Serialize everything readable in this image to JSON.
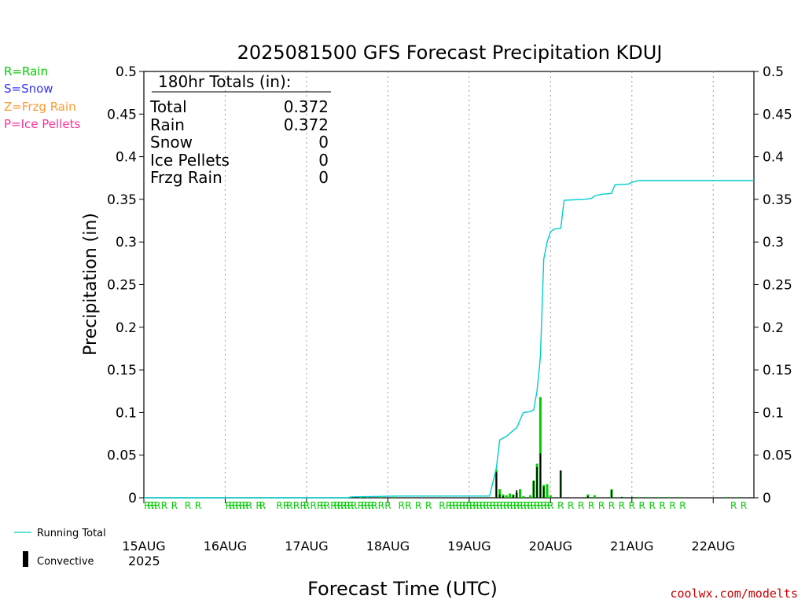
{
  "chart_data": {
    "type": "bar",
    "title": "2025081500 GFS Forecast Precipitation KDUJ",
    "xlabel": "Forecast Time (UTC)",
    "ylabel": "Precipitation (in)",
    "ylim": [
      0,
      0.5
    ],
    "y_ticks": [
      "0",
      "0.05",
      "0.1",
      "0.15",
      "0.2",
      "0.25",
      "0.3",
      "0.35",
      "0.4",
      "0.45",
      "0.5"
    ],
    "x_ticks": [
      "15AUG",
      "16AUG",
      "17AUG",
      "18AUG",
      "19AUG",
      "20AUG",
      "21AUG",
      "22AUG"
    ],
    "x_year": "2025",
    "xlim_hours": [
      0,
      180
    ],
    "grid": "vertical dotted at day boundaries",
    "colors": {
      "rain": "#00cc00",
      "snow": "#3333ff",
      "frzg": "#ff9933",
      "ice": "#ff3399",
      "convective": "#000000",
      "running_total": "#00cccc",
      "credit": "#cc0000"
    },
    "type_legend": [
      "R=Rain",
      "S=Snow",
      "Z=Frzg Rain",
      "P=Ice Pellets"
    ],
    "legend_bottom": [
      "Running Total",
      "Convective"
    ],
    "totals": {
      "header": "180hr Totals (in):",
      "rows": [
        {
          "label": "Total",
          "value": "0.372"
        },
        {
          "label": "Rain",
          "value": "0.372"
        },
        {
          "label": "Snow",
          "value": "0"
        },
        {
          "label": "Ice Pellets",
          "value": "0"
        },
        {
          "label": "Frzg Rain",
          "value": "0"
        }
      ]
    },
    "series": [
      {
        "name": "Running Total",
        "kind": "line",
        "points": [
          [
            0,
            0
          ],
          [
            60,
            0
          ],
          [
            61,
            0.001
          ],
          [
            75,
            0.002
          ],
          [
            102,
            0.002
          ],
          [
            104,
            0.035
          ],
          [
            105,
            0.068
          ],
          [
            107,
            0.072
          ],
          [
            109,
            0.079
          ],
          [
            110,
            0.082
          ],
          [
            112,
            0.1
          ],
          [
            114,
            0.101
          ],
          [
            115,
            0.103
          ],
          [
            116,
            0.125
          ],
          [
            117,
            0.165
          ],
          [
            118,
            0.28
          ],
          [
            119,
            0.3
          ],
          [
            120,
            0.312
          ],
          [
            121,
            0.315
          ],
          [
            123,
            0.316
          ],
          [
            124,
            0.349
          ],
          [
            130,
            0.35
          ],
          [
            132,
            0.351
          ],
          [
            133,
            0.354
          ],
          [
            135,
            0.356
          ],
          [
            138,
            0.357
          ],
          [
            139,
            0.367
          ],
          [
            143,
            0.368
          ],
          [
            144,
            0.37
          ],
          [
            146,
            0.372
          ],
          [
            180,
            0.372
          ]
        ]
      },
      {
        "name": "Rain",
        "kind": "bar",
        "points": [
          [
            61,
            0.001
          ],
          [
            64,
            0.001
          ],
          [
            66,
            0.001
          ],
          [
            70,
            0.001
          ],
          [
            74,
            0.001
          ],
          [
            104,
            0.033
          ],
          [
            105,
            0.01
          ],
          [
            106,
            0.004
          ],
          [
            107,
            0.003
          ],
          [
            108,
            0.005
          ],
          [
            109,
            0.004
          ],
          [
            110,
            0.006
          ],
          [
            111,
            0.01
          ],
          [
            112,
            0.002
          ],
          [
            114,
            0.003
          ],
          [
            115,
            0.02
          ],
          [
            116,
            0.04
          ],
          [
            117,
            0.118
          ],
          [
            118,
            0.015
          ],
          [
            119,
            0.016
          ],
          [
            120,
            0.003
          ],
          [
            123,
            0.032
          ],
          [
            131,
            0.004
          ],
          [
            133,
            0.003
          ],
          [
            138,
            0.01
          ],
          [
            141,
            0.001
          ],
          [
            144,
            0.001
          ],
          [
            146,
            0.001
          ],
          [
            149,
            0.001
          ],
          [
            152,
            0.001
          ],
          [
            155,
            0.001
          ],
          [
            158,
            0.001
          ],
          [
            172,
            0.001
          ],
          [
            175,
            0.001
          ]
        ]
      },
      {
        "name": "Convective",
        "kind": "bar",
        "points": [
          [
            104,
            0.03
          ],
          [
            105,
            0.004
          ],
          [
            106,
            0.002
          ],
          [
            109,
            0.003
          ],
          [
            110,
            0.009
          ],
          [
            115,
            0.02
          ],
          [
            116,
            0.036
          ],
          [
            117,
            0.052
          ],
          [
            118,
            0.013
          ],
          [
            123,
            0.032
          ],
          [
            131,
            0.002
          ],
          [
            138,
            0.009
          ],
          [
            141,
            0.001
          ],
          [
            144,
            0.001
          ]
        ]
      }
    ],
    "precip_type_marks": [
      {
        "hour": 1,
        "symbol": "R"
      },
      {
        "hour": 2,
        "symbol": "R"
      },
      {
        "hour": 3,
        "symbol": "R"
      },
      {
        "hour": 4,
        "symbol": "R"
      },
      {
        "hour": 6,
        "symbol": "R"
      },
      {
        "hour": 9,
        "symbol": "R"
      },
      {
        "hour": 13,
        "symbol": "R"
      },
      {
        "hour": 16,
        "symbol": "R"
      },
      {
        "hour": 25,
        "symbol": "R"
      },
      {
        "hour": 26,
        "symbol": "R"
      },
      {
        "hour": 27,
        "symbol": "R"
      },
      {
        "hour": 28,
        "symbol": "R"
      },
      {
        "hour": 29,
        "symbol": "R"
      },
      {
        "hour": 30,
        "symbol": "R"
      },
      {
        "hour": 31,
        "symbol": "R"
      },
      {
        "hour": 34,
        "symbol": "R"
      },
      {
        "hour": 35,
        "symbol": "R"
      },
      {
        "hour": 40,
        "symbol": "R"
      },
      {
        "hour": 42,
        "symbol": "R"
      },
      {
        "hour": 43,
        "symbol": "R"
      },
      {
        "hour": 45,
        "symbol": "R"
      },
      {
        "hour": 47,
        "symbol": "R"
      },
      {
        "hour": 48,
        "symbol": "R"
      },
      {
        "hour": 50,
        "symbol": "R"
      },
      {
        "hour": 52,
        "symbol": "R"
      },
      {
        "hour": 53,
        "symbol": "R"
      },
      {
        "hour": 54,
        "symbol": "R"
      },
      {
        "hour": 56,
        "symbol": "R"
      },
      {
        "hour": 57,
        "symbol": "R"
      },
      {
        "hour": 58,
        "symbol": "R"
      },
      {
        "hour": 59,
        "symbol": "R"
      },
      {
        "hour": 60,
        "symbol": "R"
      },
      {
        "hour": 61,
        "symbol": "R"
      },
      {
        "hour": 62,
        "symbol": "R"
      },
      {
        "hour": 64,
        "symbol": "R"
      },
      {
        "hour": 65,
        "symbol": "R"
      },
      {
        "hour": 66,
        "symbol": "R"
      },
      {
        "hour": 67,
        "symbol": "R"
      },
      {
        "hour": 68,
        "symbol": "R"
      },
      {
        "hour": 70,
        "symbol": "R"
      },
      {
        "hour": 72,
        "symbol": "R"
      },
      {
        "hour": 76,
        "symbol": "R"
      },
      {
        "hour": 78,
        "symbol": "R"
      },
      {
        "hour": 81,
        "symbol": "R"
      },
      {
        "hour": 84,
        "symbol": "R"
      },
      {
        "hour": 88,
        "symbol": "R"
      },
      {
        "hour": 90,
        "symbol": "R"
      },
      {
        "hour": 91,
        "symbol": "R"
      },
      {
        "hour": 92,
        "symbol": "R"
      },
      {
        "hour": 93,
        "symbol": "R"
      },
      {
        "hour": 94,
        "symbol": "R"
      },
      {
        "hour": 95,
        "symbol": "R"
      },
      {
        "hour": 96,
        "symbol": "R"
      },
      {
        "hour": 97,
        "symbol": "R"
      },
      {
        "hour": 98,
        "symbol": "R"
      },
      {
        "hour": 99,
        "symbol": "R"
      },
      {
        "hour": 100,
        "symbol": "R"
      },
      {
        "hour": 101,
        "symbol": "R"
      },
      {
        "hour": 102,
        "symbol": "R"
      },
      {
        "hour": 103,
        "symbol": "R"
      },
      {
        "hour": 104,
        "symbol": "R"
      },
      {
        "hour": 105,
        "symbol": "R"
      },
      {
        "hour": 106,
        "symbol": "R"
      },
      {
        "hour": 107,
        "symbol": "R"
      },
      {
        "hour": 108,
        "symbol": "R"
      },
      {
        "hour": 109,
        "symbol": "R"
      },
      {
        "hour": 110,
        "symbol": "R"
      },
      {
        "hour": 111,
        "symbol": "R"
      },
      {
        "hour": 112,
        "symbol": "R"
      },
      {
        "hour": 113,
        "symbol": "R"
      },
      {
        "hour": 114,
        "symbol": "R"
      },
      {
        "hour": 115,
        "symbol": "R"
      },
      {
        "hour": 116,
        "symbol": "R"
      },
      {
        "hour": 117,
        "symbol": "R"
      },
      {
        "hour": 118,
        "symbol": "R"
      },
      {
        "hour": 119,
        "symbol": "R"
      },
      {
        "hour": 120,
        "symbol": "R"
      },
      {
        "hour": 123,
        "symbol": "R"
      },
      {
        "hour": 126,
        "symbol": "R"
      },
      {
        "hour": 129,
        "symbol": "R"
      },
      {
        "hour": 132,
        "symbol": "R"
      },
      {
        "hour": 135,
        "symbol": "R"
      },
      {
        "hour": 138,
        "symbol": "R"
      },
      {
        "hour": 141,
        "symbol": "R"
      },
      {
        "hour": 144,
        "symbol": "R"
      },
      {
        "hour": 147,
        "symbol": "R"
      },
      {
        "hour": 150,
        "symbol": "R"
      },
      {
        "hour": 153,
        "symbol": "R"
      },
      {
        "hour": 156,
        "symbol": "R"
      },
      {
        "hour": 159,
        "symbol": "R"
      },
      {
        "hour": 174,
        "symbol": "R"
      },
      {
        "hour": 177,
        "symbol": "R"
      }
    ],
    "credit": "coolwx.com/modelts"
  }
}
